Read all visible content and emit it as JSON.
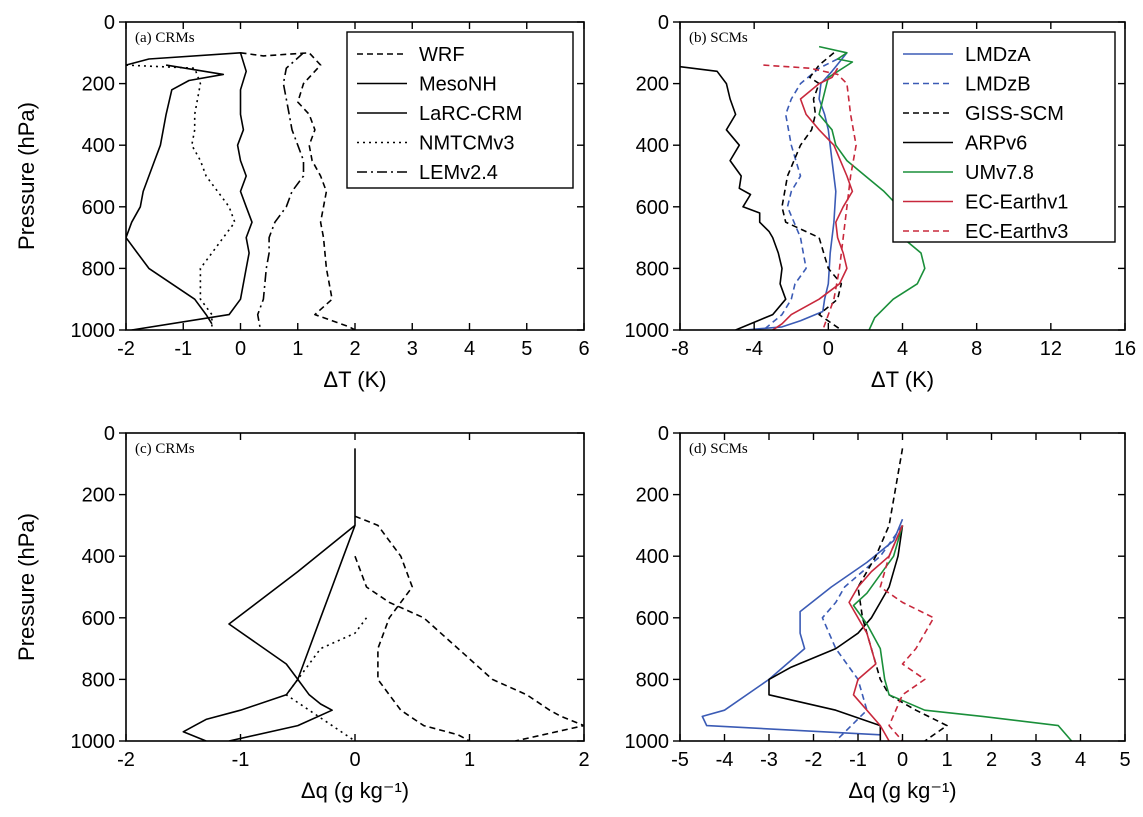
{
  "chart_data": [
    {
      "type": "line",
      "title": "(a) CRMs",
      "xlabel": "ΔT (K)",
      "ylabel": "Pressure (hPa)",
      "xlim": [
        -2,
        6
      ],
      "ylim": [
        0,
        1000
      ],
      "y_inverted": true,
      "xticks": [
        -2,
        -1,
        0,
        1,
        2,
        3,
        4,
        5,
        6
      ],
      "yticks": [
        0,
        200,
        400,
        600,
        800,
        1000
      ],
      "grid": false,
      "legend": "top-right",
      "series": [
        {
          "name": "WRF",
          "color": "#000000",
          "dash": "dashed",
          "x": [
            0.0,
            0.4,
            1.2,
            1.4,
            1.1,
            1.0,
            1.2,
            1.3,
            1.2,
            1.25,
            1.4,
            1.5,
            1.45,
            1.4,
            1.45,
            1.5,
            1.6,
            1.3,
            1.9,
            2.0
          ],
          "y": [
            100,
            110,
            100,
            140,
            200,
            260,
            300,
            350,
            400,
            450,
            500,
            550,
            600,
            650,
            700,
            800,
            900,
            950,
            990,
            1000
          ]
        },
        {
          "name": "MesoNH",
          "color": "#000000",
          "dash": "solid",
          "x": [
            -1.3,
            -0.3,
            -0.9,
            -1.2,
            -1.3,
            -1.4,
            -1.5,
            -1.6,
            -1.7,
            -1.75,
            -1.9,
            -2.0,
            -1.8,
            -1.6,
            -1.2,
            -0.8,
            -0.6,
            -0.5
          ],
          "y": [
            140,
            170,
            190,
            220,
            300,
            400,
            450,
            500,
            550,
            600,
            650,
            700,
            750,
            800,
            850,
            900,
            950,
            980
          ]
        },
        {
          "name": "LaRC-CRM",
          "color": "#000000",
          "dash": "solid",
          "x": [
            -2.0,
            -1.6,
            0.0,
            0.1,
            0.0,
            0.0,
            0.05,
            -0.05,
            0.0,
            0.1,
            0.0,
            0.1,
            0.2,
            0.1,
            0.15,
            0.1,
            0.0,
            -0.2,
            -1.9
          ],
          "y": [
            140,
            120,
            100,
            160,
            220,
            300,
            350,
            400,
            450,
            500,
            550,
            600,
            650,
            700,
            750,
            800,
            900,
            950,
            1000
          ]
        },
        {
          "name": "NMTCMv3",
          "color": "#000000",
          "dash": "dotted",
          "x": [
            -2.0,
            -0.8,
            -0.7,
            -0.8,
            -0.8,
            -0.85,
            -0.7,
            -0.6,
            -0.4,
            -0.2,
            -0.1,
            -0.3,
            -0.5,
            -0.7,
            -0.7,
            -0.5,
            -0.5
          ],
          "y": [
            140,
            150,
            200,
            300,
            350,
            400,
            450,
            500,
            550,
            600,
            650,
            700,
            750,
            800,
            900,
            950,
            1000
          ]
        },
        {
          "name": "LEMv2.4",
          "color": "#000000",
          "dash": "dashdot",
          "x": [
            1.1,
            0.8,
            0.75,
            0.8,
            0.85,
            0.9,
            1.0,
            1.1,
            1.1,
            0.9,
            0.8,
            0.6,
            0.5,
            0.5,
            0.45,
            0.4,
            0.3,
            0.35
          ],
          "y": [
            100,
            150,
            200,
            250,
            300,
            350,
            400,
            450,
            500,
            550,
            600,
            650,
            700,
            750,
            800,
            900,
            950,
            1000
          ]
        }
      ]
    },
    {
      "type": "line",
      "title": "(b) SCMs",
      "xlabel": "ΔT (K)",
      "ylabel": "",
      "xlim": [
        -8,
        16
      ],
      "ylim": [
        0,
        1000
      ],
      "y_inverted": true,
      "xticks": [
        -8,
        -4,
        0,
        4,
        8,
        12,
        16
      ],
      "yticks": [
        0,
        200,
        400,
        600,
        800,
        1000
      ],
      "grid": false,
      "legend": "top-right",
      "series": [
        {
          "name": "LMDzA",
          "color": "#3b5bb5",
          "dash": "solid",
          "x": [
            1.0,
            0.6,
            0.2,
            -0.4,
            -0.5,
            -0.2,
            0.0,
            0.2,
            0.4,
            0.3,
            0.1,
            0.0,
            -0.2,
            -0.3,
            -1.5,
            -2.5,
            -4.5
          ],
          "y": [
            100,
            130,
            160,
            200,
            250,
            300,
            350,
            450,
            550,
            650,
            750,
            850,
            900,
            940,
            970,
            990,
            1000
          ]
        },
        {
          "name": "LMDzB",
          "color": "#3b5bb5",
          "dash": "dashed",
          "x": [
            0.5,
            -0.5,
            -1.5,
            -2.0,
            -2.3,
            -2.0,
            -1.5,
            -2.0,
            -2.2,
            -1.5,
            -1.2,
            -1.8,
            -2.0,
            -2.5,
            -3.5
          ],
          "y": [
            120,
            150,
            200,
            250,
            300,
            400,
            500,
            550,
            600,
            700,
            800,
            850,
            900,
            950,
            1000
          ]
        },
        {
          "name": "GISS-SCM",
          "color": "#000000",
          "dash": "dashed",
          "x": [
            0.3,
            -0.5,
            -1.0,
            -0.5,
            -0.8,
            -0.7,
            -0.9,
            -1.5,
            -2.2,
            -2.5,
            -2.3,
            -0.5,
            0.0,
            0.7,
            0.5,
            -0.5,
            0.7
          ],
          "y": [
            100,
            140,
            180,
            200,
            250,
            300,
            350,
            400,
            500,
            600,
            650,
            700,
            800,
            850,
            900,
            950,
            1000
          ]
        },
        {
          "name": "ARPv6",
          "color": "#000000",
          "dash": "solid",
          "x": [
            -8.0,
            -6.0,
            -5.5,
            -5.3,
            -5.0,
            -5.5,
            -4.8,
            -5.3,
            -4.7,
            -4.8,
            -4.2,
            -4.6,
            -3.7,
            -3.7,
            -3.2,
            -3.0,
            -2.7,
            -2.5,
            -2.6,
            -2.3,
            -3.0,
            -5.0
          ],
          "y": [
            145,
            160,
            200,
            250,
            300,
            350,
            400,
            450,
            500,
            540,
            560,
            600,
            620,
            650,
            680,
            700,
            750,
            800,
            850,
            900,
            950,
            1000
          ]
        },
        {
          "name": "UMv7.8",
          "color": "#1a8f3a",
          "dash": "solid",
          "x": [
            -0.5,
            1.0,
            0.5,
            1.3,
            0.0,
            -0.5,
            0.2,
            0.4,
            1.0,
            2.0,
            3.0,
            3.8,
            3.5,
            4.0,
            5.0,
            5.2,
            4.8,
            3.5,
            2.5,
            2.2
          ],
          "y": [
            80,
            100,
            120,
            130,
            180,
            300,
            350,
            400,
            450,
            500,
            550,
            600,
            650,
            700,
            750,
            800,
            850,
            900,
            960,
            1000
          ]
        },
        {
          "name": "EC-Earthv1",
          "color": "#c8283c",
          "dash": "solid",
          "x": [
            0.5,
            0.2,
            -0.5,
            -1.5,
            -1.2,
            -0.5,
            0.3,
            1.0,
            1.3,
            0.8,
            0.4,
            0.5,
            0.8,
            1.0,
            0.6,
            -0.5,
            -2.0,
            -2.5,
            -3.0
          ],
          "y": [
            150,
            180,
            200,
            250,
            300,
            350,
            400,
            500,
            550,
            600,
            650,
            700,
            750,
            800,
            850,
            900,
            950,
            980,
            1000
          ]
        },
        {
          "name": "EC-Earthv3",
          "color": "#c8283c",
          "dash": "dashed",
          "x": [
            -3.5,
            -1.0,
            0.5,
            1.0,
            1.2,
            1.5,
            1.2,
            1.0,
            0.8,
            0.6,
            0.3,
            -0.3
          ],
          "y": [
            140,
            150,
            170,
            200,
            300,
            400,
            500,
            600,
            700,
            800,
            900,
            1000
          ]
        }
      ]
    },
    {
      "type": "line",
      "title": "(c) CRMs",
      "xlabel": "Δq (g kg⁻¹)",
      "ylabel": "Pressure (hPa)",
      "xlim": [
        -2,
        2
      ],
      "ylim": [
        0,
        1000
      ],
      "y_inverted": true,
      "xticks": [
        -2,
        -1,
        0,
        1,
        2
      ],
      "yticks": [
        0,
        200,
        400,
        600,
        800,
        1000
      ],
      "grid": false,
      "series": [
        {
          "name": "WRF",
          "color": "#000000",
          "dash": "dashed",
          "x": [
            0.0,
            0.2,
            0.3,
            0.4,
            0.5,
            0.3,
            0.2,
            0.2,
            0.3,
            0.4,
            0.6,
            0.9,
            1.0
          ],
          "y": [
            270,
            300,
            350,
            400,
            500,
            600,
            700,
            800,
            850,
            900,
            950,
            980,
            1000
          ]
        },
        {
          "name": "MesoNH",
          "color": "#000000",
          "dash": "solid",
          "x": [
            0.0,
            -0.5,
            -1.1,
            -0.6,
            -0.5,
            -0.6,
            -1.0,
            -1.3,
            -1.4,
            -1.5,
            -1.3
          ],
          "y": [
            300,
            450,
            620,
            750,
            800,
            850,
            900,
            930,
            950,
            970,
            1000
          ]
        },
        {
          "name": "LaRC-CRM",
          "color": "#000000",
          "dash": "solid",
          "x": [
            0.0,
            0.0,
            0.0,
            -0.1,
            -0.2,
            -0.3,
            -0.4,
            -0.5,
            -0.4,
            -0.3,
            -0.2,
            -0.5,
            -1.1
          ],
          "y": [
            50,
            150,
            300,
            400,
            500,
            600,
            700,
            800,
            850,
            880,
            900,
            950,
            1000
          ]
        },
        {
          "name": "NMTCMv3",
          "color": "#000000",
          "dash": "dotted",
          "x": [
            0.1,
            0.0,
            -0.3,
            -0.4,
            -0.5,
            -0.6,
            -0.4,
            -0.2,
            0.0
          ],
          "y": [
            600,
            650,
            700,
            750,
            800,
            850,
            900,
            950,
            1000
          ]
        },
        {
          "name": "LEMv2.4",
          "color": "#000000",
          "dash": "dashed",
          "x": [
            0.0,
            0.1,
            0.3,
            0.6,
            0.9,
            1.2,
            1.5,
            1.7,
            1.8,
            2.0,
            1.4
          ],
          "y": [
            400,
            500,
            550,
            600,
            700,
            800,
            850,
            900,
            920,
            950,
            1000
          ]
        }
      ]
    },
    {
      "type": "line",
      "title": "(d) SCMs",
      "xlabel": "Δq (g kg⁻¹)",
      "ylabel": "",
      "xlim": [
        -5,
        5
      ],
      "ylim": [
        0,
        1000
      ],
      "y_inverted": true,
      "xticks": [
        -5,
        -4,
        -3,
        -2,
        -1,
        0,
        1,
        2,
        3,
        4,
        5
      ],
      "yticks": [
        0,
        200,
        400,
        600,
        800,
        1000
      ],
      "grid": false,
      "series": [
        {
          "name": "LMDzA",
          "color": "#3b5bb5",
          "dash": "solid",
          "x": [
            0.0,
            -0.2,
            -0.8,
            -1.6,
            -2.3,
            -2.3,
            -2.2,
            -3.0,
            -4.0,
            -4.5,
            -4.4,
            -0.5
          ],
          "y": [
            280,
            350,
            420,
            500,
            580,
            650,
            700,
            800,
            900,
            920,
            950,
            980
          ]
        },
        {
          "name": "LMDzB",
          "color": "#3b5bb5",
          "dash": "dashed",
          "x": [
            0.0,
            -0.5,
            -1.3,
            -1.5,
            -1.8,
            -1.5,
            -1.0,
            -0.8,
            -1.5
          ],
          "y": [
            300,
            400,
            500,
            550,
            600,
            700,
            800,
            900,
            1000
          ]
        },
        {
          "name": "GISS-SCM",
          "color": "#000000",
          "dash": "dashed",
          "x": [
            0.0,
            -0.3,
            -0.6,
            -1.0,
            -0.9,
            -0.7,
            -0.5,
            -0.3,
            0.3,
            1.0,
            0.5
          ],
          "y": [
            50,
            300,
            400,
            500,
            600,
            700,
            800,
            850,
            900,
            950,
            1000
          ]
        },
        {
          "name": "ARPv6",
          "color": "#000000",
          "dash": "solid",
          "x": [
            0.0,
            -0.1,
            -0.3,
            -0.5,
            -0.7,
            -1.0,
            -1.5,
            -2.5,
            -3.0,
            -3.0,
            -1.5,
            -0.5,
            -0.5
          ],
          "y": [
            300,
            400,
            500,
            550,
            600,
            650,
            700,
            760,
            800,
            850,
            900,
            950,
            1000
          ]
        },
        {
          "name": "UMv7.8",
          "color": "#1a8f3a",
          "dash": "solid",
          "x": [
            0.0,
            -0.2,
            -0.8,
            -1.1,
            -0.8,
            -0.5,
            -0.4,
            -0.3,
            0.5,
            1.8,
            3.5,
            3.8
          ],
          "y": [
            300,
            400,
            520,
            560,
            620,
            700,
            800,
            850,
            900,
            920,
            950,
            1000
          ]
        },
        {
          "name": "EC-Earthv1",
          "color": "#c8283c",
          "dash": "solid",
          "x": [
            0.0,
            -0.3,
            -0.7,
            -1.0,
            -1.2,
            -0.8,
            -0.6,
            -1.0,
            -1.1,
            -0.5,
            -0.3
          ],
          "y": [
            300,
            400,
            450,
            500,
            550,
            650,
            750,
            800,
            850,
            950,
            1000
          ]
        },
        {
          "name": "EC-Earthv3",
          "color": "#c8283c",
          "dash": "dashed",
          "x": [
            0.0,
            -0.3,
            -0.5,
            0.0,
            0.7,
            0.3,
            0.0,
            0.5,
            0.0,
            -0.3,
            0.0
          ],
          "y": [
            300,
            400,
            500,
            550,
            600,
            700,
            750,
            800,
            850,
            950,
            1000
          ]
        }
      ]
    }
  ]
}
